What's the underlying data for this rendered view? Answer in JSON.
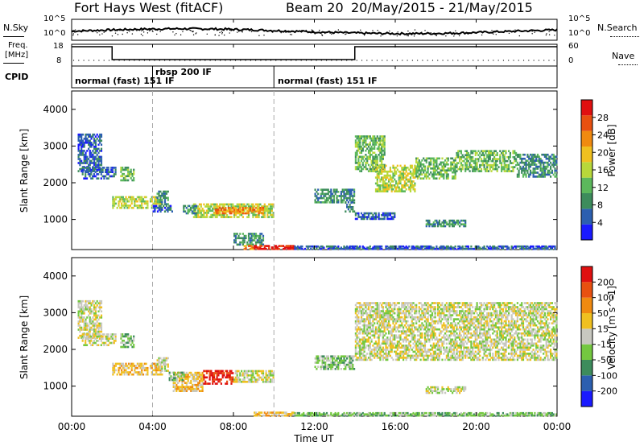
{
  "header": {
    "radar": "Fort Hays West (fitACF)",
    "beam": "Beam 20",
    "dates": "20/May/2015 - 21/May/2015"
  },
  "noise_panel": {
    "left_label": "N.Sky",
    "right_label": "N.Search",
    "left_ticks": [
      "10^5",
      "10^0"
    ],
    "right_ticks": [
      "10^5",
      "10^0"
    ]
  },
  "freq_panel": {
    "left_label_1": "Freq.",
    "left_label_2": "[MHz]",
    "left_ticks": [
      "18",
      "8"
    ],
    "right_ticks": [
      "60",
      "0"
    ],
    "right_label": "Nave"
  },
  "cpid_panel": {
    "label": "CPID",
    "segments": [
      {
        "text": "normal (fast) 151 IF",
        "start": "00:00"
      },
      {
        "text": "rbsp 200 IF",
        "start": "04:00"
      },
      {
        "text": "normal (fast) 151 IF",
        "start": "10:00"
      }
    ]
  },
  "colors": {
    "power_scale": [
      "#1a1aff",
      "#2c5fb0",
      "#3d8c5c",
      "#5cb85c",
      "#b8d83a",
      "#f0c020",
      "#f08a10",
      "#e85010",
      "#e01010"
    ],
    "velocity_scale": [
      "#1a1aff",
      "#2c5fb0",
      "#3d8c5c",
      "#74c840",
      "#c8c8c0",
      "#f0c020",
      "#f08a10",
      "#e85010",
      "#e01010"
    ]
  },
  "chart_data": [
    {
      "type": "heatmap",
      "title": "",
      "ylabel": "Slant Range [km]",
      "xlabel": "",
      "colorbar_label": "Power [dB]",
      "colorbar_ticks": [
        "28",
        "24",
        "20",
        "16",
        "12",
        "8",
        "4"
      ],
      "x_ticks": [
        "00:00",
        "04:00",
        "08:00",
        "12:00",
        "16:00",
        "20:00",
        "00:00"
      ],
      "y_ticks": [
        "4000",
        "3000",
        "2000",
        "1000"
      ],
      "ylim": [
        180,
        4500
      ],
      "regions": [
        {
          "t0": 0.3,
          "t1": 1.5,
          "r0": 2300,
          "r1": 3350,
          "level": 1
        },
        {
          "t0": 0.5,
          "t1": 2.2,
          "r0": 2100,
          "r1": 2450,
          "level": 1
        },
        {
          "t0": 2.4,
          "t1": 3.1,
          "r0": 2050,
          "r1": 2450,
          "level": 3
        },
        {
          "t0": 2.0,
          "t1": 4.5,
          "r0": 1300,
          "r1": 1650,
          "level": 4
        },
        {
          "t0": 4.2,
          "t1": 4.8,
          "r0": 1400,
          "r1": 1800,
          "level": 2
        },
        {
          "t0": 4.0,
          "t1": 5.0,
          "r0": 1200,
          "r1": 1400,
          "level": 1
        },
        {
          "t0": 6.0,
          "t1": 10.0,
          "r0": 1050,
          "r1": 1450,
          "level": 4
        },
        {
          "t0": 7.0,
          "t1": 9.5,
          "r0": 1150,
          "r1": 1350,
          "level": 6
        },
        {
          "t0": 5.5,
          "t1": 6.2,
          "r0": 1150,
          "r1": 1400,
          "level": 2
        },
        {
          "t0": 8.0,
          "t1": 9.5,
          "r0": 300,
          "r1": 650,
          "level": 2
        },
        {
          "t0": 9.0,
          "t1": 11.0,
          "r0": 180,
          "r1": 300,
          "level": 8
        },
        {
          "t0": 8.5,
          "t1": 9.0,
          "r0": 180,
          "r1": 300,
          "level": 6
        },
        {
          "t0": 12.0,
          "t1": 14.0,
          "r0": 1450,
          "r1": 1850,
          "level": 2
        },
        {
          "t0": 13.5,
          "t1": 14.0,
          "r0": 1200,
          "r1": 1500,
          "level": 2
        },
        {
          "t0": 14.0,
          "t1": 15.5,
          "r0": 2300,
          "r1": 3300,
          "level": 3
        },
        {
          "t0": 15.0,
          "t1": 17.0,
          "r0": 1750,
          "r1": 2500,
          "level": 4
        },
        {
          "t0": 17.0,
          "t1": 19.0,
          "r0": 2100,
          "r1": 2700,
          "level": 3
        },
        {
          "t0": 19.0,
          "t1": 22.0,
          "r0": 2300,
          "r1": 2900,
          "level": 3
        },
        {
          "t0": 22.0,
          "t1": 24.0,
          "r0": 2150,
          "r1": 2800,
          "level": 2
        },
        {
          "t0": 17.5,
          "t1": 19.5,
          "r0": 800,
          "r1": 1000,
          "level": 2
        },
        {
          "t0": 14.0,
          "t1": 16.0,
          "r0": 1000,
          "r1": 1200,
          "level": 1
        },
        {
          "t0": 11.0,
          "t1": 24.0,
          "r0": 180,
          "r1": 280,
          "level": 1
        }
      ]
    },
    {
      "type": "heatmap",
      "title": "",
      "ylabel": "Slant Range [km]",
      "xlabel": "Time UT",
      "colorbar_label": "Velocity [m s^-1]",
      "colorbar_ticks": [
        "200",
        "100",
        "50",
        "15",
        "-15",
        "-50",
        "-100",
        "-200"
      ],
      "x_ticks": [
        "00:00",
        "04:00",
        "08:00",
        "12:00",
        "16:00",
        "20:00",
        "00:00"
      ],
      "y_ticks": [
        "4000",
        "3000",
        "2000",
        "1000"
      ],
      "ylim": [
        180,
        4500
      ],
      "regions": [
        {
          "t0": 0.3,
          "t1": 1.5,
          "r0": 2300,
          "r1": 3350,
          "level": 4
        },
        {
          "t0": 0.5,
          "t1": 2.2,
          "r0": 2100,
          "r1": 2450,
          "level": 4
        },
        {
          "t0": 2.4,
          "t1": 3.1,
          "r0": 2050,
          "r1": 2450,
          "level": 3
        },
        {
          "t0": 2.0,
          "t1": 4.5,
          "r0": 1300,
          "r1": 1650,
          "level": 5
        },
        {
          "t0": 4.2,
          "t1": 4.8,
          "r0": 1400,
          "r1": 1800,
          "level": 4
        },
        {
          "t0": 5.0,
          "t1": 6.5,
          "r0": 850,
          "r1": 1400,
          "level": 5
        },
        {
          "t0": 6.5,
          "t1": 8.0,
          "r0": 1050,
          "r1": 1450,
          "level": 8
        },
        {
          "t0": 8.0,
          "t1": 10.0,
          "r0": 1100,
          "r1": 1450,
          "level": 4
        },
        {
          "t0": 4.8,
          "t1": 5.6,
          "r0": 1150,
          "r1": 1400,
          "level": 3
        },
        {
          "t0": 9.0,
          "t1": 11.0,
          "r0": 180,
          "r1": 300,
          "level": 5
        },
        {
          "t0": 12.0,
          "t1": 14.0,
          "r0": 1450,
          "r1": 1850,
          "level": 3
        },
        {
          "t0": 14.0,
          "t1": 24.0,
          "r0": 1700,
          "r1": 3300,
          "level": 4
        },
        {
          "t0": 17.5,
          "t1": 19.5,
          "r0": 800,
          "r1": 1000,
          "level": 4
        },
        {
          "t0": 11.0,
          "t1": 24.0,
          "r0": 180,
          "r1": 280,
          "level": 3
        }
      ]
    }
  ]
}
